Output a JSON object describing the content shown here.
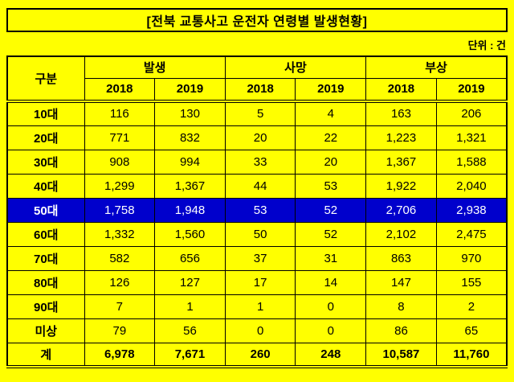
{
  "page": {
    "title": "[전북 교통사고 운전자 연령별 발생현황]",
    "unit_label": "단위 : 건"
  },
  "colors": {
    "background": "#FFFF00",
    "border": "#000000",
    "highlight_row_bg": "#0000CC",
    "highlight_row_text": "#FFFFFF"
  },
  "chart_data": {
    "type": "table",
    "title": "전북 교통사고 운전자 연령별 발생현황",
    "unit": "건",
    "corner_header": "구분",
    "column_groups": [
      {
        "label": "발생",
        "years": [
          "2018",
          "2019"
        ]
      },
      {
        "label": "사망",
        "years": [
          "2018",
          "2019"
        ]
      },
      {
        "label": "부상",
        "years": [
          "2018",
          "2019"
        ]
      }
    ],
    "year_headers": [
      "2018",
      "2019",
      "2018",
      "2019",
      "2018",
      "2019"
    ],
    "highlighted_row": "50대",
    "rows": [
      {
        "label": "10대",
        "values": [
          "116",
          "130",
          "5",
          "4",
          "163",
          "206"
        ],
        "highlight": false,
        "total": false
      },
      {
        "label": "20대",
        "values": [
          "771",
          "832",
          "20",
          "22",
          "1,223",
          "1,321"
        ],
        "highlight": false,
        "total": false
      },
      {
        "label": "30대",
        "values": [
          "908",
          "994",
          "33",
          "20",
          "1,367",
          "1,588"
        ],
        "highlight": false,
        "total": false
      },
      {
        "label": "40대",
        "values": [
          "1,299",
          "1,367",
          "44",
          "53",
          "1,922",
          "2,040"
        ],
        "highlight": false,
        "total": false
      },
      {
        "label": "50대",
        "values": [
          "1,758",
          "1,948",
          "53",
          "52",
          "2,706",
          "2,938"
        ],
        "highlight": true,
        "total": false
      },
      {
        "label": "60대",
        "values": [
          "1,332",
          "1,560",
          "50",
          "52",
          "2,102",
          "2,475"
        ],
        "highlight": false,
        "total": false
      },
      {
        "label": "70대",
        "values": [
          "582",
          "656",
          "37",
          "31",
          "863",
          "970"
        ],
        "highlight": false,
        "total": false
      },
      {
        "label": "80대",
        "values": [
          "126",
          "127",
          "17",
          "14",
          "147",
          "155"
        ],
        "highlight": false,
        "total": false
      },
      {
        "label": "90대",
        "values": [
          "7",
          "1",
          "1",
          "0",
          "8",
          "2"
        ],
        "highlight": false,
        "total": false
      },
      {
        "label": "미상",
        "values": [
          "79",
          "56",
          "0",
          "0",
          "86",
          "65"
        ],
        "highlight": false,
        "total": false
      },
      {
        "label": "계",
        "values": [
          "6,978",
          "7,671",
          "260",
          "248",
          "10,587",
          "11,760"
        ],
        "highlight": false,
        "total": true
      }
    ]
  }
}
